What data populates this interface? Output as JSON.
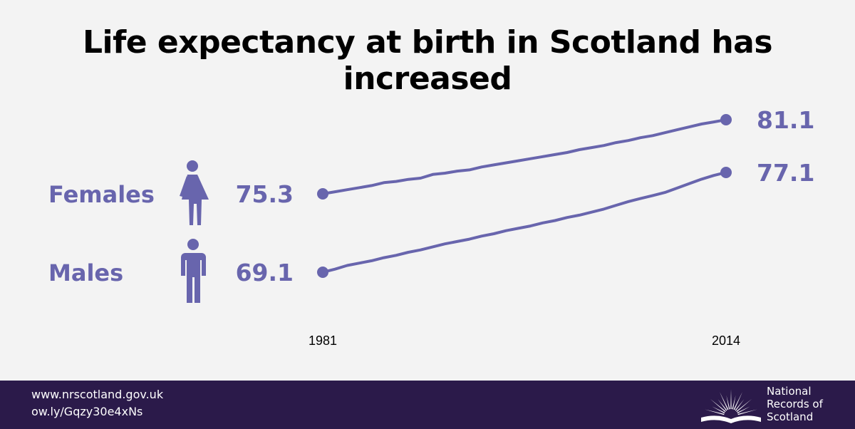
{
  "title": "Life expectancy at birth in Scotland has increased",
  "chart_data": {
    "type": "line",
    "x_start_label": "1981",
    "x_end_label": "2014",
    "xlim": [
      1981,
      2014
    ],
    "ylim": [
      67,
      83
    ],
    "series": [
      {
        "name": "Females",
        "start_label": "75.3",
        "end_label": "81.1",
        "x": [
          1981,
          1982,
          1983,
          1984,
          1985,
          1986,
          1987,
          1988,
          1989,
          1990,
          1991,
          1992,
          1993,
          1994,
          1995,
          1996,
          1997,
          1998,
          1999,
          2000,
          2001,
          2002,
          2003,
          2004,
          2005,
          2006,
          2007,
          2008,
          2009,
          2010,
          2011,
          2012,
          2013,
          2014
        ],
        "values": [
          75.3,
          75.4,
          75.5,
          75.6,
          75.7,
          75.9,
          75.9,
          76.0,
          76.0,
          76.3,
          76.3,
          76.4,
          76.4,
          76.6,
          76.7,
          76.8,
          76.9,
          77.0,
          77.1,
          77.2,
          77.3,
          77.5,
          77.6,
          77.7,
          77.9,
          78.0,
          78.2,
          78.3,
          78.5,
          78.7,
          78.9,
          79.1,
          79.2,
          81.1
        ]
      },
      {
        "name": "Males",
        "start_label": "69.1",
        "end_label": "77.1",
        "x": [
          1981,
          1982,
          1983,
          1984,
          1985,
          1986,
          1987,
          1988,
          1989,
          1990,
          1991,
          1992,
          1993,
          1994,
          1995,
          1996,
          1997,
          1998,
          1999,
          2000,
          2001,
          2002,
          2003,
          2004,
          2005,
          2006,
          2007,
          2008,
          2009,
          2010,
          2011,
          2012,
          2013,
          2014
        ],
        "values": [
          69.1,
          69.3,
          69.6,
          69.7,
          69.8,
          70.0,
          70.1,
          70.3,
          70.4,
          70.6,
          70.8,
          70.9,
          71.0,
          71.2,
          71.3,
          71.5,
          71.6,
          71.7,
          71.9,
          72.0,
          72.2,
          72.3,
          72.5,
          72.7,
          73.0,
          73.3,
          73.5,
          73.7,
          73.9,
          74.3,
          74.7,
          75.1,
          75.4,
          77.1
        ]
      }
    ],
    "line_color": "#6865ad",
    "text_color": "#6865ad"
  },
  "footer": {
    "url1": "www.nrscotland.gov.uk",
    "url2": "ow.ly/Gqzy30e4xNs",
    "brand_line1": "National",
    "brand_line2": "Records of",
    "brand_line3": "Scotland",
    "logo_icon": "book-sunburst-icon",
    "background": "#2b1a4a"
  },
  "icons": {
    "female": "female-person-icon",
    "male": "male-person-icon"
  }
}
